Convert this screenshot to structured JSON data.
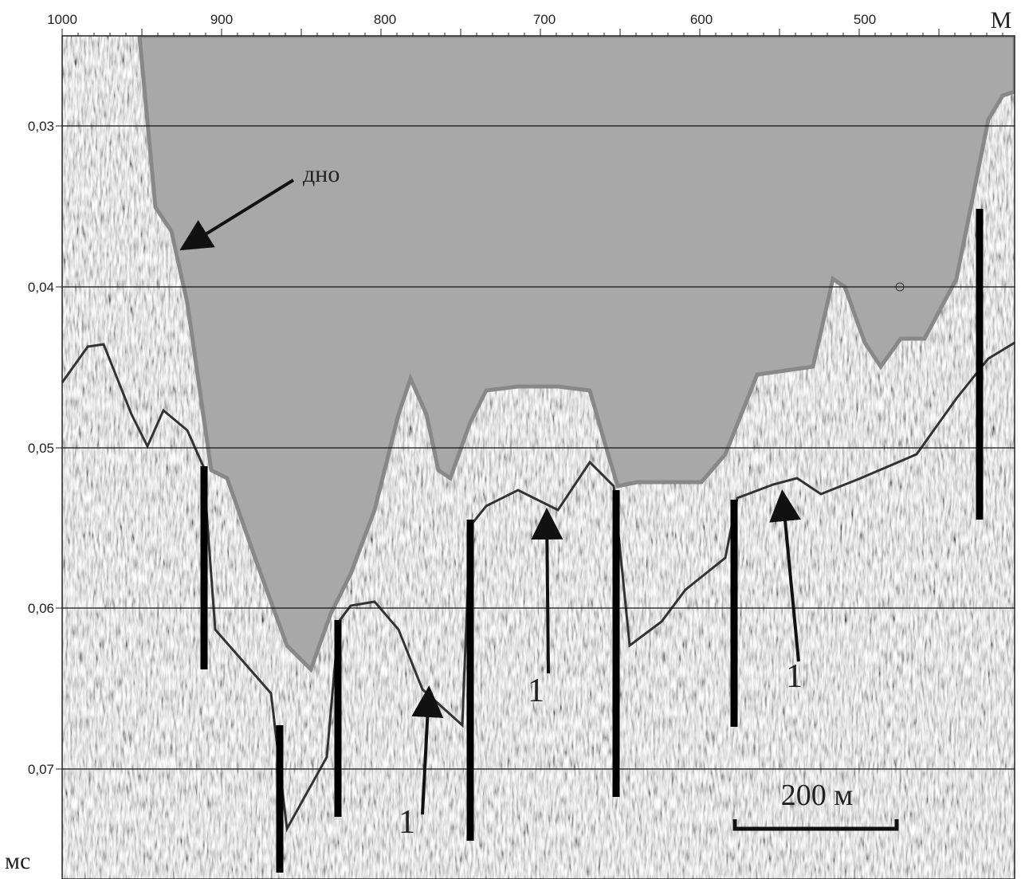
{
  "top_axis": {
    "labels": [
      "1000",
      "900",
      "800",
      "700",
      "600",
      "500"
    ],
    "unit": "М"
  },
  "left_axis": {
    "labels": [
      "0,03",
      "0,04",
      "0,05",
      "0,06",
      "0,07"
    ],
    "unit": "мс"
  },
  "annotations": {
    "bottom": "дно",
    "layer": [
      "1",
      "1",
      "1"
    ]
  },
  "scale_bar": "200 м"
}
